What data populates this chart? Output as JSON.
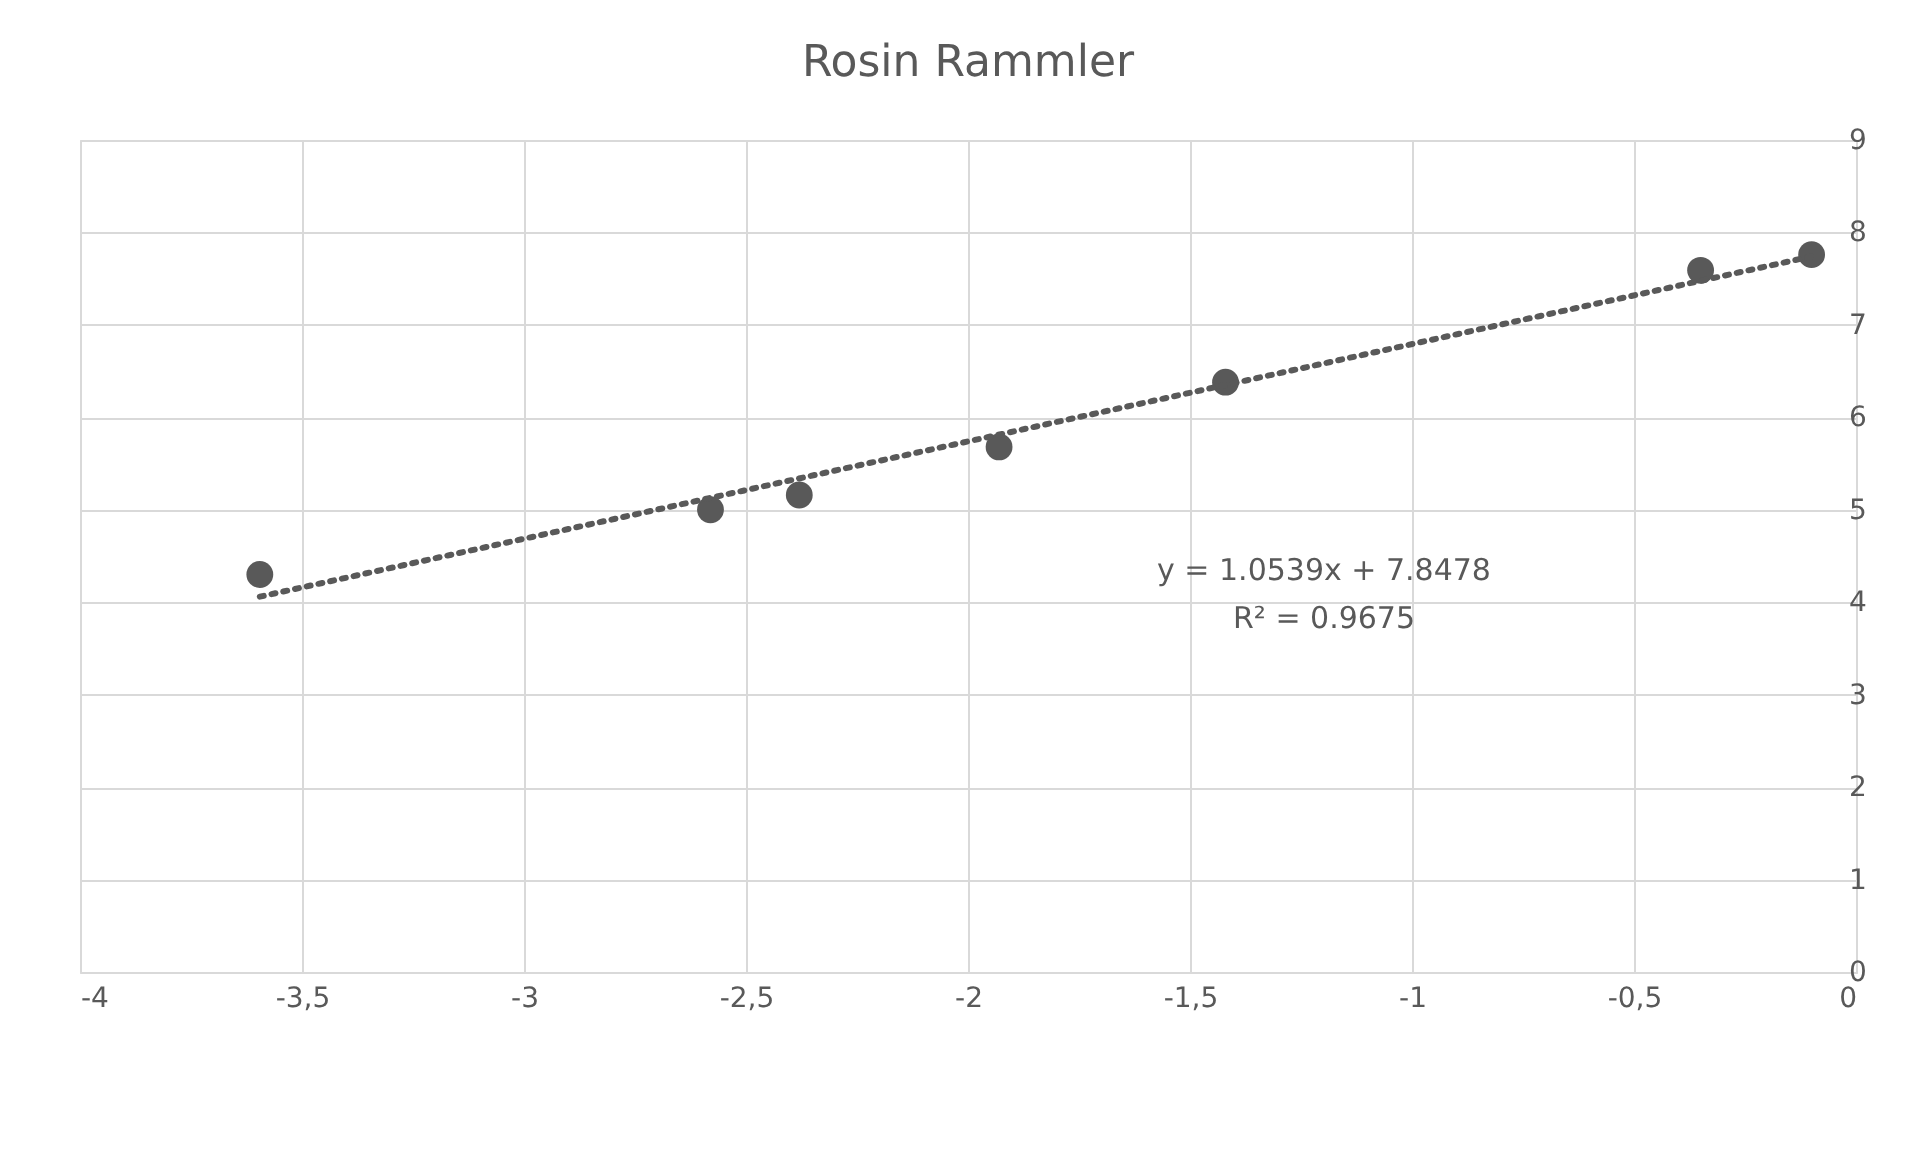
{
  "chart_data": {
    "type": "scatter",
    "title": "Rosin Rammler",
    "x": [
      -3.595,
      -2.58,
      -2.38,
      -1.93,
      -1.42,
      -0.35,
      -0.1
    ],
    "series": [
      {
        "color": "#595959",
        "marker": "circle",
        "values": [
          4.3,
          5.0,
          5.16,
          5.68,
          6.38,
          7.59,
          7.76
        ]
      },
      {
        "type": "line",
        "color": "#595959",
        "line_style": "dotted",
        "marker": "none",
        "x": [
          -3.595,
          -0.1
        ],
        "values": [
          4.06,
          7.74
        ]
      }
    ],
    "xlim": [
      -4,
      0
    ],
    "xticks": [
      -4,
      {
        "value": -3.5,
        "label": "-3,5"
      },
      -3,
      {
        "value": -2.5,
        "label": "-2,5"
      },
      -2,
      {
        "value": -1.5,
        "label": "-1,5"
      },
      -1,
      {
        "value": -0.5,
        "label": "-0,5"
      },
      0
    ],
    "ylim": [
      0,
      9
    ],
    "yticks": [
      0,
      1,
      2,
      3,
      4,
      5,
      6,
      7,
      8,
      9
    ],
    "grid": true,
    "annotations": [
      "y = 1.0539x + 7.8478",
      "R² = 0.9675"
    ]
  }
}
